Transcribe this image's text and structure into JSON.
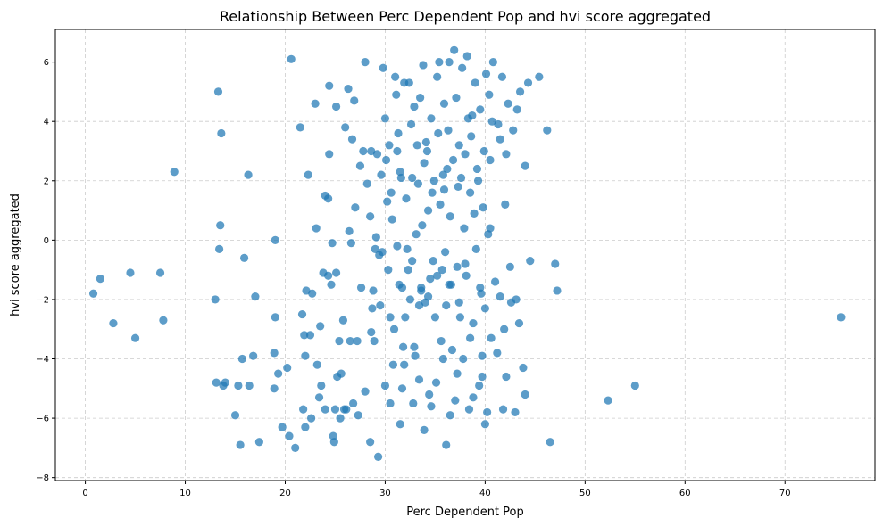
{
  "chart_data": {
    "type": "scatter",
    "title": "Relationship Between Perc Dependent Pop and hvi score aggregated",
    "xlabel": "Perc Dependent Pop",
    "ylabel": "hvi score aggregated",
    "xlim": [
      -3,
      79
    ],
    "ylim": [
      -8.1,
      7.1
    ],
    "xticks": [
      0,
      10,
      20,
      30,
      40,
      50,
      60,
      70
    ],
    "yticks": [
      -8,
      -6,
      -4,
      -2,
      0,
      2,
      4,
      6
    ],
    "grid": true,
    "legend": "none",
    "color": "#1f77b4",
    "series": [
      {
        "points": [
          [
            0.8,
            -1.8
          ],
          [
            1.5,
            -1.3
          ],
          [
            2.8,
            -2.8
          ],
          [
            4.5,
            -1.1
          ],
          [
            5.0,
            -3.3
          ],
          [
            7.5,
            -1.1
          ],
          [
            7.8,
            -2.7
          ],
          [
            8.9,
            2.3
          ],
          [
            13.0,
            -2.0
          ],
          [
            13.1,
            -4.8
          ],
          [
            13.3,
            5.0
          ],
          [
            13.4,
            -0.3
          ],
          [
            13.5,
            0.5
          ],
          [
            13.6,
            3.6
          ],
          [
            13.8,
            -4.9
          ],
          [
            14.0,
            -4.8
          ],
          [
            15.0,
            -5.9
          ],
          [
            15.3,
            -4.9
          ],
          [
            15.5,
            -6.9
          ],
          [
            15.7,
            -4.0
          ],
          [
            15.9,
            -0.6
          ],
          [
            16.3,
            2.2
          ],
          [
            16.4,
            -4.9
          ],
          [
            16.8,
            -3.9
          ],
          [
            17.0,
            -1.9
          ],
          [
            17.4,
            -6.8
          ],
          [
            18.9,
            -3.8
          ],
          [
            18.9,
            -5.0
          ],
          [
            19.0,
            -2.6
          ],
          [
            19.0,
            0.0
          ],
          [
            19.3,
            -4.5
          ],
          [
            19.7,
            -6.3
          ],
          [
            20.2,
            -4.3
          ],
          [
            20.4,
            -6.6
          ],
          [
            20.6,
            6.1
          ],
          [
            21.0,
            -7.0
          ],
          [
            21.5,
            3.8
          ],
          [
            21.7,
            -2.5
          ],
          [
            21.8,
            -5.7
          ],
          [
            21.9,
            -3.2
          ],
          [
            22.0,
            -6.3
          ],
          [
            22.0,
            -3.9
          ],
          [
            22.1,
            -1.7
          ],
          [
            22.3,
            2.2
          ],
          [
            22.5,
            -3.2
          ],
          [
            22.6,
            -6.0
          ],
          [
            22.7,
            -1.8
          ],
          [
            23.0,
            4.6
          ],
          [
            23.1,
            0.4
          ],
          [
            23.2,
            -4.2
          ],
          [
            23.4,
            -5.3
          ],
          [
            23.5,
            -2.9
          ],
          [
            23.6,
            -4.9
          ],
          [
            23.8,
            -1.1
          ],
          [
            24.0,
            1.5
          ],
          [
            24.0,
            -5.7
          ],
          [
            24.3,
            -1.2
          ],
          [
            24.3,
            1.4
          ],
          [
            24.4,
            5.2
          ],
          [
            24.4,
            2.9
          ],
          [
            24.6,
            -1.5
          ],
          [
            24.7,
            -0.1
          ],
          [
            24.8,
            -6.6
          ],
          [
            24.9,
            -6.8
          ],
          [
            25.0,
            -5.7
          ],
          [
            25.1,
            -1.1
          ],
          [
            25.2,
            -4.6
          ],
          [
            25.4,
            -3.4
          ],
          [
            25.5,
            -6.0
          ],
          [
            25.6,
            -4.5
          ],
          [
            25.8,
            -2.7
          ],
          [
            25.9,
            -5.7
          ],
          [
            26.1,
            -5.7
          ],
          [
            26.3,
            5.1
          ],
          [
            26.4,
            0.3
          ],
          [
            26.5,
            -3.4
          ],
          [
            26.6,
            -0.1
          ],
          [
            26.7,
            3.4
          ],
          [
            26.8,
            -5.5
          ],
          [
            27.0,
            1.1
          ],
          [
            27.2,
            -3.4
          ],
          [
            27.3,
            -5.9
          ],
          [
            27.5,
            2.5
          ],
          [
            27.6,
            -1.6
          ],
          [
            27.8,
            3.0
          ],
          [
            28.0,
            -5.1
          ],
          [
            28.2,
            1.9
          ],
          [
            28.5,
            0.8
          ],
          [
            28.6,
            -3.1
          ],
          [
            28.7,
            -2.3
          ],
          [
            28.8,
            -1.7
          ],
          [
            28.9,
            -3.4
          ],
          [
            29.1,
            0.1
          ],
          [
            29.2,
            2.9
          ],
          [
            29.4,
            -0.5
          ],
          [
            29.5,
            -2.2
          ],
          [
            29.7,
            -0.4
          ],
          [
            29.8,
            5.8
          ],
          [
            30.0,
            4.1
          ],
          [
            30.1,
            2.7
          ],
          [
            30.2,
            1.3
          ],
          [
            30.4,
            3.2
          ],
          [
            30.5,
            -2.6
          ],
          [
            30.5,
            -5.5
          ],
          [
            30.6,
            1.6
          ],
          [
            30.7,
            0.7
          ],
          [
            30.9,
            -3.0
          ],
          [
            31.0,
            5.5
          ],
          [
            31.1,
            4.9
          ],
          [
            31.2,
            3.0
          ],
          [
            31.3,
            3.6
          ],
          [
            31.4,
            -1.5
          ],
          [
            31.5,
            2.3
          ],
          [
            31.7,
            -1.6
          ],
          [
            31.8,
            -3.6
          ],
          [
            31.9,
            -4.2
          ],
          [
            32.1,
            1.4
          ],
          [
            32.2,
            -0.3
          ],
          [
            32.3,
            -1.0
          ],
          [
            32.5,
            -2.0
          ],
          [
            32.6,
            3.9
          ],
          [
            32.7,
            2.1
          ],
          [
            32.8,
            -5.5
          ],
          [
            32.9,
            4.5
          ],
          [
            33.0,
            -3.9
          ],
          [
            33.1,
            0.2
          ],
          [
            33.2,
            3.2
          ],
          [
            33.4,
            -2.2
          ],
          [
            33.5,
            4.8
          ],
          [
            33.6,
            -1.7
          ],
          [
            33.7,
            0.5
          ],
          [
            33.9,
            2.6
          ],
          [
            34.0,
            -2.1
          ],
          [
            34.1,
            3.3
          ],
          [
            34.3,
            1.0
          ],
          [
            34.4,
            -5.2
          ],
          [
            34.5,
            -1.3
          ],
          [
            34.6,
            4.1
          ],
          [
            34.8,
            -0.7
          ],
          [
            34.9,
            2.0
          ],
          [
            35.0,
            -2.6
          ],
          [
            35.1,
            -4.8
          ],
          [
            35.2,
            5.5
          ],
          [
            35.3,
            3.6
          ],
          [
            35.5,
            1.2
          ],
          [
            35.6,
            -3.4
          ],
          [
            35.7,
            -1.0
          ],
          [
            35.8,
            2.2
          ],
          [
            35.9,
            4.6
          ],
          [
            36.0,
            -0.4
          ],
          [
            36.1,
            -2.2
          ],
          [
            36.3,
            3.7
          ],
          [
            36.4,
            6.0
          ],
          [
            36.5,
            0.8
          ],
          [
            36.6,
            -1.5
          ],
          [
            36.7,
            -3.7
          ],
          [
            36.8,
            2.7
          ],
          [
            37.0,
            -5.4
          ],
          [
            37.1,
            4.8
          ],
          [
            37.2,
            -0.9
          ],
          [
            37.3,
            1.8
          ],
          [
            37.4,
            3.2
          ],
          [
            37.5,
            -2.6
          ],
          [
            37.7,
            5.8
          ],
          [
            37.8,
            -4.0
          ],
          [
            37.9,
            0.4
          ],
          [
            38.0,
            2.9
          ],
          [
            38.1,
            -1.2
          ],
          [
            38.3,
            4.1
          ],
          [
            38.4,
            -5.7
          ],
          [
            38.5,
            1.6
          ],
          [
            38.6,
            3.5
          ],
          [
            38.8,
            -2.8
          ],
          [
            38.9,
            0.9
          ],
          [
            39.0,
            5.3
          ],
          [
            39.1,
            -0.3
          ],
          [
            39.2,
            2.4
          ],
          [
            39.4,
            -4.9
          ],
          [
            39.5,
            4.4
          ],
          [
            39.6,
            -1.8
          ],
          [
            39.7,
            -3.9
          ],
          [
            39.8,
            1.1
          ],
          [
            39.9,
            3.0
          ],
          [
            40.0,
            -2.3
          ],
          [
            40.1,
            5.6
          ],
          [
            40.2,
            -5.8
          ],
          [
            40.3,
            0.2
          ],
          [
            40.5,
            2.7
          ],
          [
            40.6,
            -3.3
          ],
          [
            40.7,
            4.0
          ],
          [
            40.8,
            6.0
          ],
          [
            41.0,
            -1.4
          ],
          [
            41.2,
            -3.8
          ],
          [
            41.5,
            3.4
          ],
          [
            41.7,
            5.5
          ],
          [
            41.8,
            -5.7
          ],
          [
            42.0,
            1.2
          ],
          [
            42.3,
            4.6
          ],
          [
            42.6,
            -2.1
          ],
          [
            42.8,
            3.7
          ],
          [
            43.0,
            -5.8
          ],
          [
            43.2,
            4.4
          ],
          [
            43.5,
            5.0
          ],
          [
            43.8,
            -4.3
          ],
          [
            44.0,
            2.5
          ],
          [
            44.3,
            5.3
          ],
          [
            44.5,
            -0.7
          ],
          [
            45.4,
            5.5
          ],
          [
            46.2,
            3.7
          ],
          [
            46.5,
            -6.8
          ],
          [
            47.0,
            -0.8
          ],
          [
            47.2,
            -1.7
          ],
          [
            52.3,
            -5.4
          ],
          [
            55.0,
            -4.9
          ],
          [
            75.6,
            -2.6
          ],
          [
            25.1,
            4.5
          ],
          [
            26.0,
            3.8
          ],
          [
            26.9,
            4.7
          ],
          [
            28.0,
            6.0
          ],
          [
            28.6,
            3.0
          ],
          [
            29.6,
            2.2
          ],
          [
            31.6,
            2.1
          ],
          [
            31.9,
            5.3
          ],
          [
            32.4,
            5.3
          ],
          [
            33.3,
            1.9
          ],
          [
            33.8,
            5.9
          ],
          [
            34.2,
            3.0
          ],
          [
            34.7,
            1.6
          ],
          [
            35.4,
            6.0
          ],
          [
            35.9,
            1.7
          ],
          [
            36.2,
            2.4
          ],
          [
            36.9,
            6.4
          ],
          [
            37.6,
            2.1
          ],
          [
            38.2,
            6.2
          ],
          [
            38.7,
            4.2
          ],
          [
            39.3,
            2.0
          ],
          [
            40.4,
            4.9
          ],
          [
            41.3,
            3.9
          ],
          [
            42.1,
            2.9
          ],
          [
            29.0,
            -0.3
          ],
          [
            30.3,
            -1.0
          ],
          [
            31.2,
            -0.2
          ],
          [
            32.0,
            -2.6
          ],
          [
            32.7,
            -0.7
          ],
          [
            33.6,
            -1.6
          ],
          [
            34.3,
            -1.9
          ],
          [
            35.2,
            -1.2
          ],
          [
            36.4,
            -1.5
          ],
          [
            37.4,
            -2.1
          ],
          [
            38.0,
            -0.8
          ],
          [
            39.5,
            -1.6
          ],
          [
            40.5,
            0.4
          ],
          [
            41.5,
            -1.9
          ],
          [
            42.5,
            -0.9
          ],
          [
            43.1,
            -2.0
          ],
          [
            30.8,
            -4.2
          ],
          [
            31.7,
            -5.0
          ],
          [
            32.9,
            -3.6
          ],
          [
            33.4,
            -4.7
          ],
          [
            34.6,
            -5.6
          ],
          [
            35.8,
            -4.0
          ],
          [
            36.5,
            -5.9
          ],
          [
            37.2,
            -4.5
          ],
          [
            38.5,
            -3.3
          ],
          [
            39.7,
            -4.6
          ],
          [
            41.9,
            -3.0
          ],
          [
            43.4,
            -2.8
          ],
          [
            30.0,
            -4.9
          ],
          [
            31.5,
            -6.2
          ],
          [
            33.9,
            -6.4
          ],
          [
            36.1,
            -6.9
          ],
          [
            38.8,
            -5.3
          ],
          [
            40.0,
            -6.2
          ],
          [
            42.1,
            -4.6
          ],
          [
            44.0,
            -5.2
          ],
          [
            29.3,
            -7.3
          ],
          [
            28.5,
            -6.8
          ]
        ]
      }
    ]
  }
}
